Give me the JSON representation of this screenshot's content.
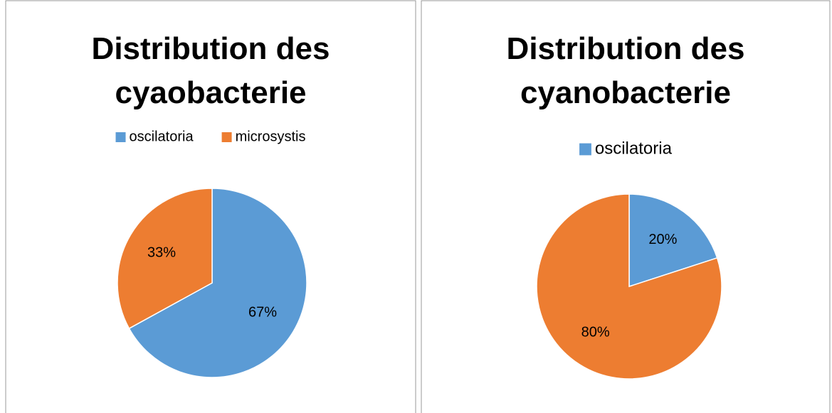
{
  "chart_data": [
    {
      "type": "pie",
      "title": "Distribution des cyaobacterie",
      "categories": [
        "oscilatoria",
        "microsystis"
      ],
      "values": [
        67,
        33
      ],
      "value_labels": [
        "67%",
        "33%"
      ],
      "colors": [
        "#5b9bd5",
        "#ed7d31"
      ],
      "legend": "top"
    },
    {
      "type": "pie",
      "title": "Distribution des cyanobacterie",
      "categories": [
        "oscilatoria",
        null
      ],
      "values": [
        20,
        80
      ],
      "value_labels": [
        "20%",
        "80%"
      ],
      "colors": [
        "#5b9bd5",
        "#ed7d31"
      ],
      "legend": "top"
    }
  ]
}
